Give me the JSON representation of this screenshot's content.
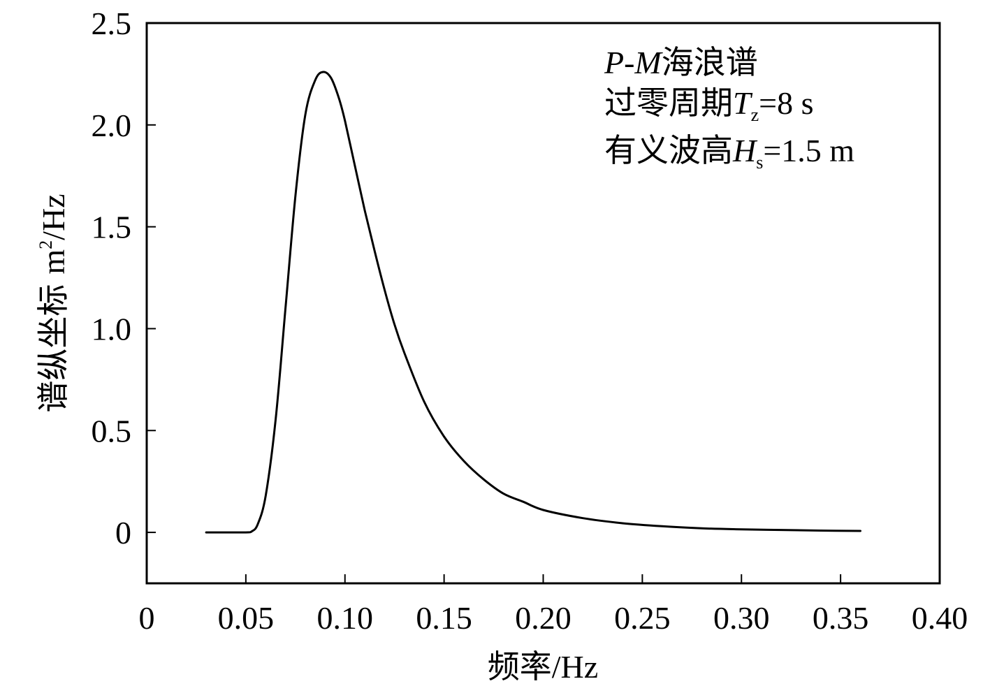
{
  "chart_data": {
    "type": "line",
    "xlabel": "频率/Hz",
    "ylabel_main": "谱纵坐标",
    "ylabel_unit_base": "m",
    "ylabel_unit_sup": "2",
    "ylabel_unit_tail": "/Hz",
    "xlim": [
      0,
      0.4
    ],
    "ylim": [
      -0.25,
      2.5
    ],
    "xticks": [
      "0",
      "0.05",
      "0.10",
      "0.15",
      "0.20",
      "0.25",
      "0.30",
      "0.35",
      "0.40"
    ],
    "yticks": [
      "0",
      "0.5",
      "1.0",
      "1.5",
      "2.0",
      "2.5"
    ],
    "grid": false,
    "annotation": {
      "line1_italic": "P-M",
      "line1_rest": "海浪谱",
      "line2_prefix": "过零周期",
      "line2_var": "T",
      "line2_sub": "z",
      "line2_value": "=8 s",
      "line3_prefix": "有义波高",
      "line3_var": "H",
      "line3_sub": "s",
      "line3_value": "=1.5 m"
    },
    "series": [
      {
        "color": "#000000",
        "x": [
          0.03,
          0.04,
          0.05,
          0.053,
          0.056,
          0.06,
          0.065,
          0.07,
          0.075,
          0.08,
          0.085,
          0.089,
          0.093,
          0.097,
          0.1,
          0.105,
          0.11,
          0.115,
          0.12,
          0.125,
          0.13,
          0.14,
          0.15,
          0.16,
          0.17,
          0.18,
          0.19,
          0.2,
          0.22,
          0.24,
          0.26,
          0.28,
          0.3,
          0.32,
          0.34,
          0.36
        ],
        "y": [
          0.0,
          0.0,
          0.0,
          0.005,
          0.04,
          0.18,
          0.55,
          1.1,
          1.65,
          2.05,
          2.22,
          2.26,
          2.23,
          2.13,
          2.02,
          1.8,
          1.58,
          1.38,
          1.19,
          1.02,
          0.88,
          0.64,
          0.47,
          0.35,
          0.26,
          0.19,
          0.15,
          0.11,
          0.07,
          0.045,
          0.03,
          0.02,
          0.015,
          0.012,
          0.009,
          0.007
        ]
      }
    ]
  }
}
